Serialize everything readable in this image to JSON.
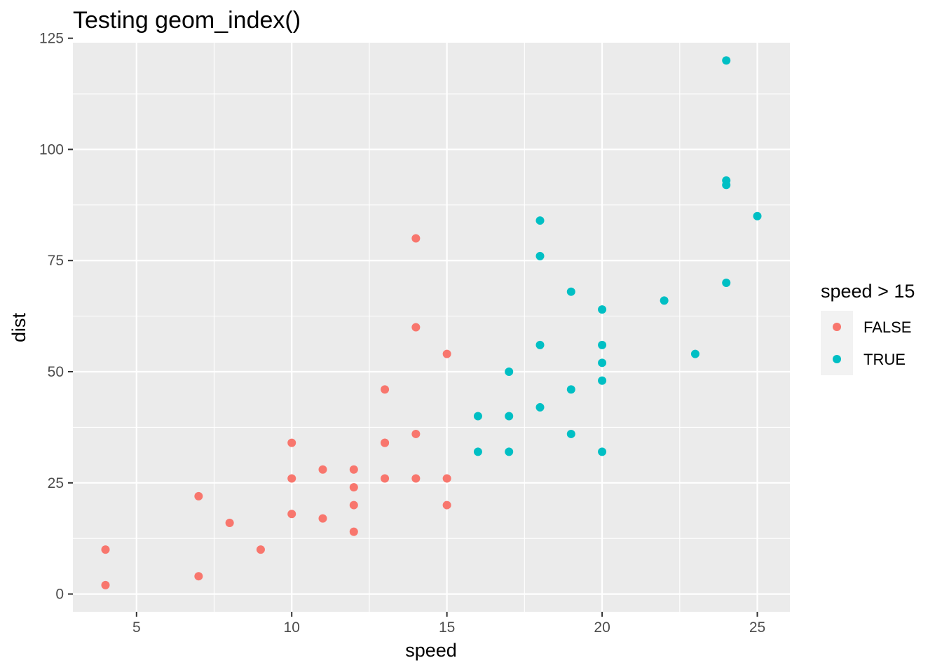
{
  "chart_data": {
    "type": "scatter",
    "title": "Testing geom_index()",
    "xlabel": "speed",
    "ylabel": "dist",
    "xlim": [
      2.95,
      26.05
    ],
    "ylim": [
      -4,
      124
    ],
    "x_ticks": [
      5,
      10,
      15,
      20,
      25
    ],
    "y_ticks": [
      0,
      25,
      50,
      75,
      100,
      125
    ],
    "grid": true,
    "panel_background": "#ebebeb",
    "legend": {
      "title": "speed > 15",
      "placement": "right",
      "entries": [
        {
          "label": "FALSE",
          "color": "#f8766d"
        },
        {
          "label": "TRUE",
          "color": "#00bfc4"
        }
      ]
    },
    "series": [
      {
        "name": "FALSE",
        "color": "#f8766d",
        "points": [
          [
            4,
            2
          ],
          [
            4,
            10
          ],
          [
            7,
            4
          ],
          [
            7,
            22
          ],
          [
            8,
            16
          ],
          [
            9,
            10
          ],
          [
            10,
            18
          ],
          [
            10,
            26
          ],
          [
            10,
            34
          ],
          [
            11,
            17
          ],
          [
            11,
            28
          ],
          [
            12,
            14
          ],
          [
            12,
            20
          ],
          [
            12,
            24
          ],
          [
            12,
            28
          ],
          [
            13,
            26
          ],
          [
            13,
            34
          ],
          [
            13,
            34
          ],
          [
            13,
            46
          ],
          [
            14,
            26
          ],
          [
            14,
            36
          ],
          [
            14,
            60
          ],
          [
            14,
            80
          ],
          [
            15,
            20
          ],
          [
            15,
            26
          ],
          [
            15,
            54
          ]
        ]
      },
      {
        "name": "TRUE",
        "color": "#00bfc4",
        "points": [
          [
            16,
            32
          ],
          [
            16,
            40
          ],
          [
            17,
            32
          ],
          [
            17,
            40
          ],
          [
            17,
            50
          ],
          [
            18,
            42
          ],
          [
            18,
            56
          ],
          [
            18,
            76
          ],
          [
            18,
            84
          ],
          [
            19,
            36
          ],
          [
            19,
            46
          ],
          [
            19,
            68
          ],
          [
            20,
            32
          ],
          [
            20,
            48
          ],
          [
            20,
            52
          ],
          [
            20,
            56
          ],
          [
            20,
            64
          ],
          [
            22,
            66
          ],
          [
            23,
            54
          ],
          [
            24,
            70
          ],
          [
            24,
            92
          ],
          [
            24,
            93
          ],
          [
            24,
            120
          ],
          [
            25,
            85
          ]
        ]
      }
    ]
  }
}
